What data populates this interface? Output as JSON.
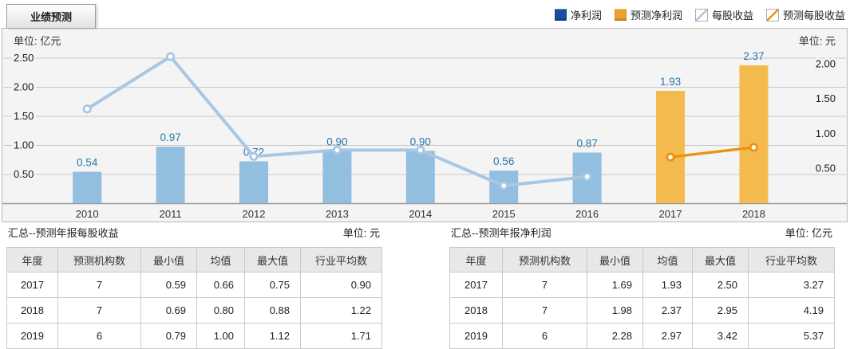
{
  "tab": {
    "label": "业绩预测"
  },
  "colors": {
    "bar_net_profit": "#92bfdf",
    "bar_forecast_net_profit": "#f5ba4d",
    "line_eps": "#a9c7e4",
    "line_forecast_eps": "#e8940f",
    "legend_net_profit": "#1b4ea3",
    "legend_forecast_net_profit": "#eda02d",
    "value_label": "#2878a8",
    "grid_line": "#c9c9c9",
    "axis_line": "#9b9b9b",
    "panel_bg": "#f4f4f4"
  },
  "legend": [
    {
      "id": "net-profit",
      "label": "净利润",
      "swatch": "square",
      "color": "#1b4ea3"
    },
    {
      "id": "forecast-net-profit",
      "label": "预测净利润",
      "swatch": "square",
      "color": "#eda02d"
    },
    {
      "id": "eps",
      "label": "每股收益",
      "swatch": "line",
      "color": "#a9c7e4"
    },
    {
      "id": "forecast-eps",
      "label": "预测每股收益",
      "swatch": "line",
      "color": "#e8940f"
    }
  ],
  "chart_data": {
    "type": "bar+line",
    "categories": [
      "2010",
      "2011",
      "2012",
      "2013",
      "2014",
      "2015",
      "2016",
      "2017",
      "2018"
    ],
    "left_axis": {
      "unit_label": "单位: 亿元",
      "ticks": [
        0.5,
        1.0,
        1.5,
        2.0,
        2.5
      ],
      "range": [
        0,
        3.0
      ]
    },
    "right_axis": {
      "unit_label": "单位: 元",
      "ticks": [
        0.5,
        1.0,
        1.5,
        2.0
      ],
      "range": [
        0,
        2.5
      ]
    },
    "grid": true,
    "legend_position": "top-right",
    "series": [
      {
        "name": "净利润",
        "kind": "bar",
        "axis": "left",
        "color": "#92bfdf",
        "values": [
          0.54,
          0.97,
          0.72,
          0.9,
          0.9,
          0.56,
          0.87,
          null,
          null
        ],
        "labels": [
          "0.54",
          "0.97",
          "0.72",
          "0.90",
          "0.90",
          "0.56",
          "0.87",
          null,
          null
        ]
      },
      {
        "name": "预测净利润",
        "kind": "bar",
        "axis": "left",
        "color": "#f5ba4d",
        "values": [
          null,
          null,
          null,
          null,
          null,
          null,
          null,
          1.93,
          2.37
        ],
        "labels": [
          null,
          null,
          null,
          null,
          null,
          null,
          null,
          "1.93",
          "2.37"
        ]
      },
      {
        "name": "每股收益",
        "kind": "line",
        "axis": "right",
        "color": "#a9c7e4",
        "values": [
          1.35,
          2.1,
          0.67,
          0.76,
          0.76,
          0.25,
          0.38,
          null,
          null
        ]
      },
      {
        "name": "预测每股收益",
        "kind": "line",
        "axis": "right",
        "color": "#e8940f",
        "values": [
          null,
          null,
          null,
          null,
          null,
          null,
          null,
          0.66,
          0.8
        ]
      }
    ]
  },
  "tables": {
    "left": {
      "title": "汇总--预测年报每股收益",
      "unit": "单位: 元",
      "headers": [
        "年度",
        "预测机构数",
        "最小值",
        "均值",
        "最大值",
        "行业平均数"
      ],
      "rows": [
        [
          "2017",
          "7",
          "0.59",
          "0.66",
          "0.75",
          "0.90"
        ],
        [
          "2018",
          "7",
          "0.69",
          "0.80",
          "0.88",
          "1.22"
        ],
        [
          "2019",
          "6",
          "0.79",
          "1.00",
          "1.12",
          "1.71"
        ]
      ]
    },
    "right": {
      "title": "汇总--预测年报净利润",
      "unit": "单位: 亿元",
      "headers": [
        "年度",
        "预测机构数",
        "最小值",
        "均值",
        "最大值",
        "行业平均数"
      ],
      "rows": [
        [
          "2017",
          "7",
          "1.69",
          "1.93",
          "2.50",
          "3.27"
        ],
        [
          "2018",
          "7",
          "1.98",
          "2.37",
          "2.95",
          "4.19"
        ],
        [
          "2019",
          "6",
          "2.28",
          "2.97",
          "3.42",
          "5.37"
        ]
      ]
    }
  }
}
